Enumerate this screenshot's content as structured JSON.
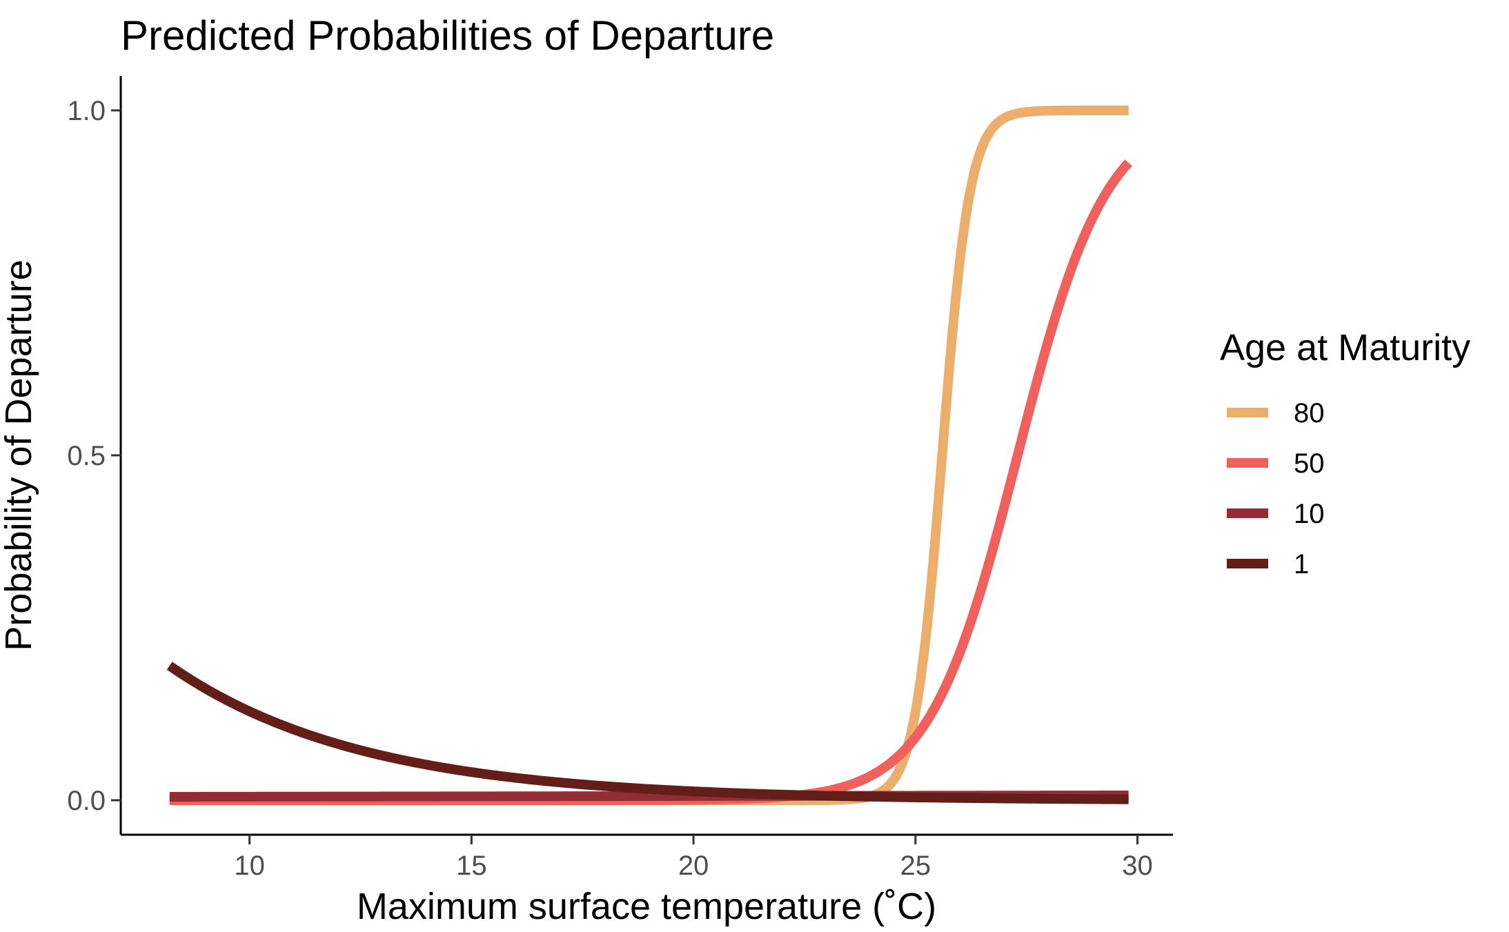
{
  "chart_data": {
    "type": "line",
    "title": "Predicted Probabilities of Departure",
    "xlabel": "Maximum surface temperature (˚C)",
    "ylabel": "Probability of Departure",
    "xlim": [
      7.1,
      30.8
    ],
    "ylim": [
      -0.05,
      1.05
    ],
    "x_ticks": [
      10,
      15,
      20,
      25,
      30
    ],
    "x_tick_labels": [
      "10",
      "15",
      "20",
      "25",
      "30"
    ],
    "y_ticks": [
      0.0,
      0.5,
      1.0
    ],
    "y_tick_labels": [
      "0.0",
      "0.5",
      "1.0"
    ],
    "grid": false,
    "legend": {
      "title": "Age at Maturity",
      "position": "right"
    },
    "x_range": [
      8.2,
      29.8
    ],
    "series": [
      {
        "name": "80",
        "color": "#EBAE6B",
        "model": "logistic",
        "midpoint": 25.6,
        "slope": 3.2
      },
      {
        "name": "50",
        "color": "#F0605D",
        "model": "logistic",
        "midpoint": 27.3,
        "slope": 1.0
      },
      {
        "name": "10",
        "color": "#922D35",
        "model": "linear",
        "start": 0.005,
        "end": 0.007
      },
      {
        "name": "1",
        "color": "#631E1A",
        "model": "exponential",
        "start": 0.195,
        "rate": 0.23
      }
    ]
  }
}
